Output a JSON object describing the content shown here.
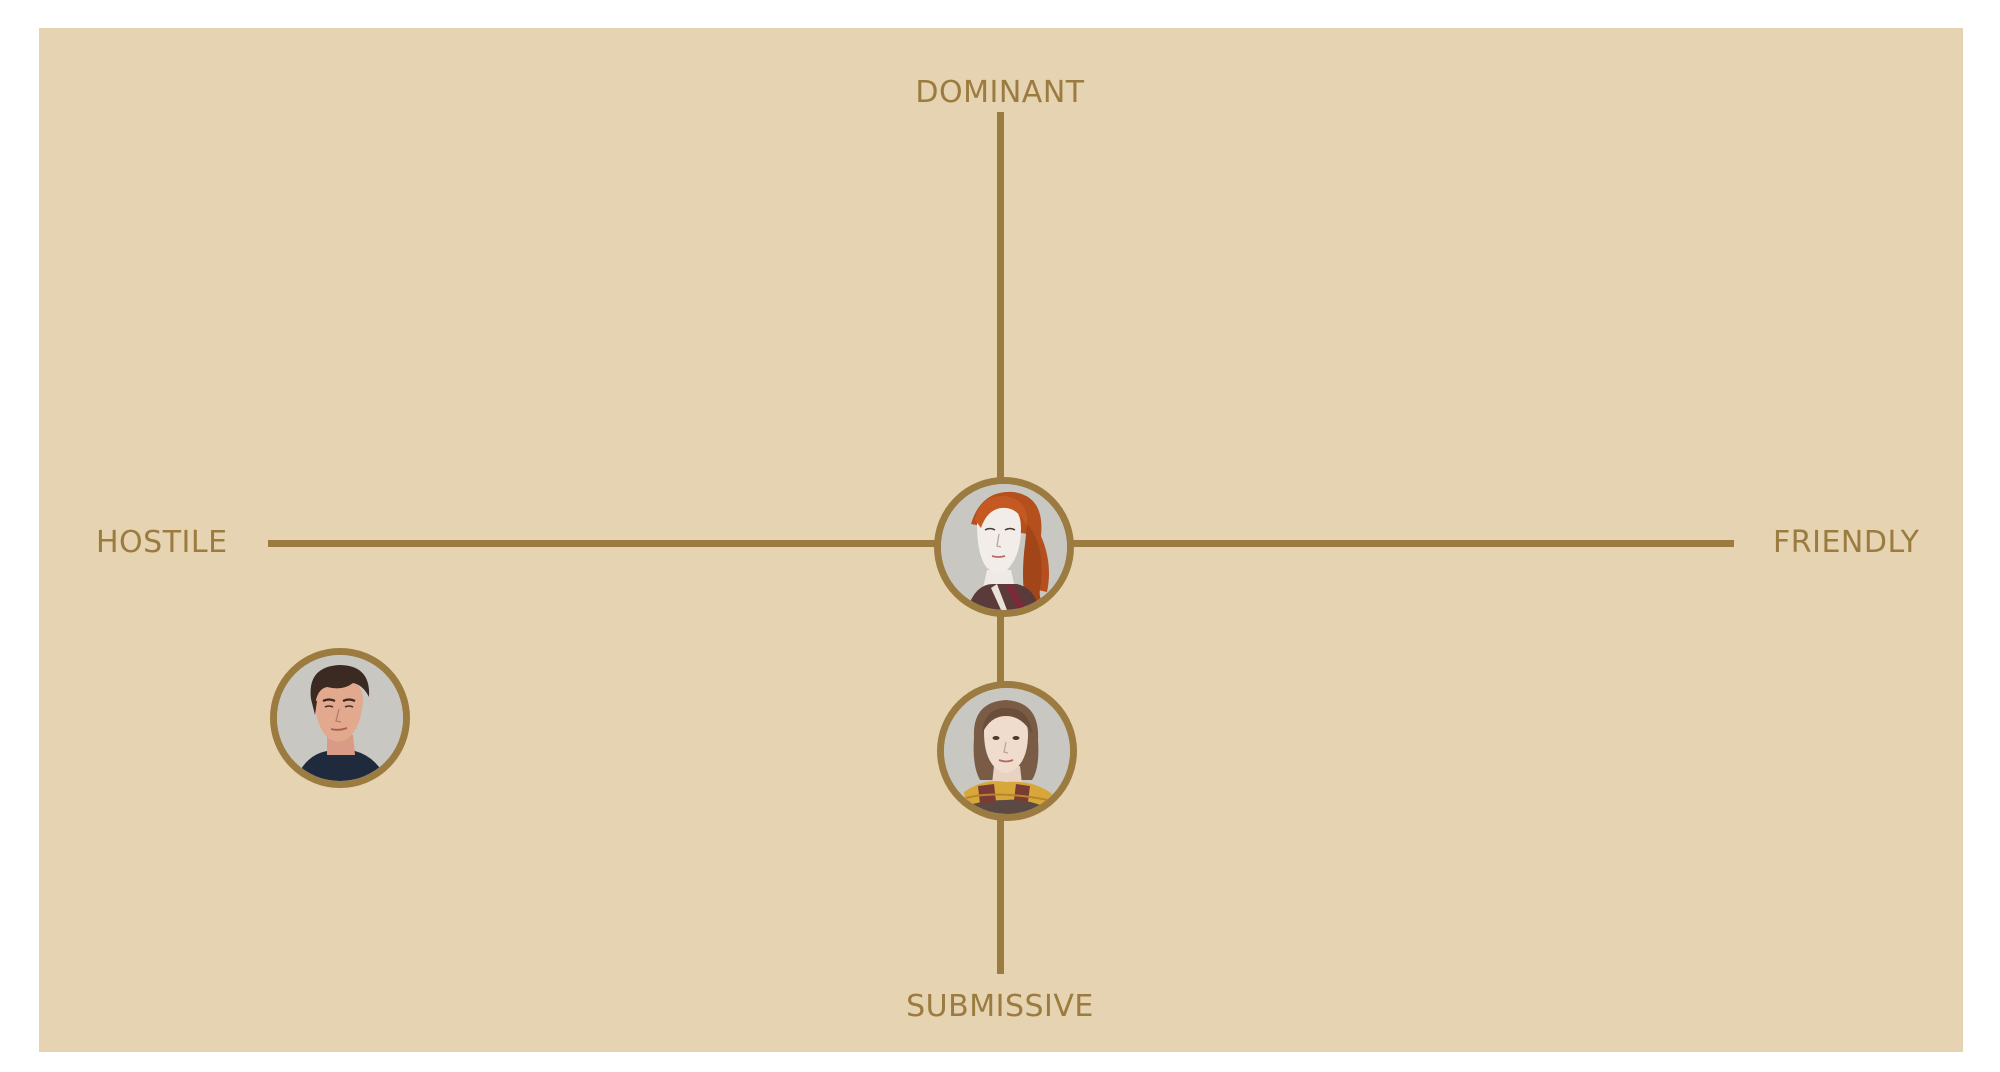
{
  "axes": {
    "top": "DOMINANT",
    "bottom": "SUBMISSIVE",
    "left": "HOSTILE",
    "right": "FRIENDLY"
  },
  "colors": {
    "background": "#e5d3b1",
    "accent": "#9b7b3f",
    "portrait_bg": "#c8c6c1"
  },
  "portraits": [
    {
      "icon": "red-haired-woman-portrait-icon",
      "friendly": 0.0,
      "dominant": 0.0
    },
    {
      "icon": "brown-haired-woman-scarf-portrait-icon",
      "friendly": 0.0,
      "dominant": -0.37
    },
    {
      "icon": "dark-haired-man-portrait-icon",
      "friendly": -0.92,
      "dominant": -0.31
    }
  ]
}
